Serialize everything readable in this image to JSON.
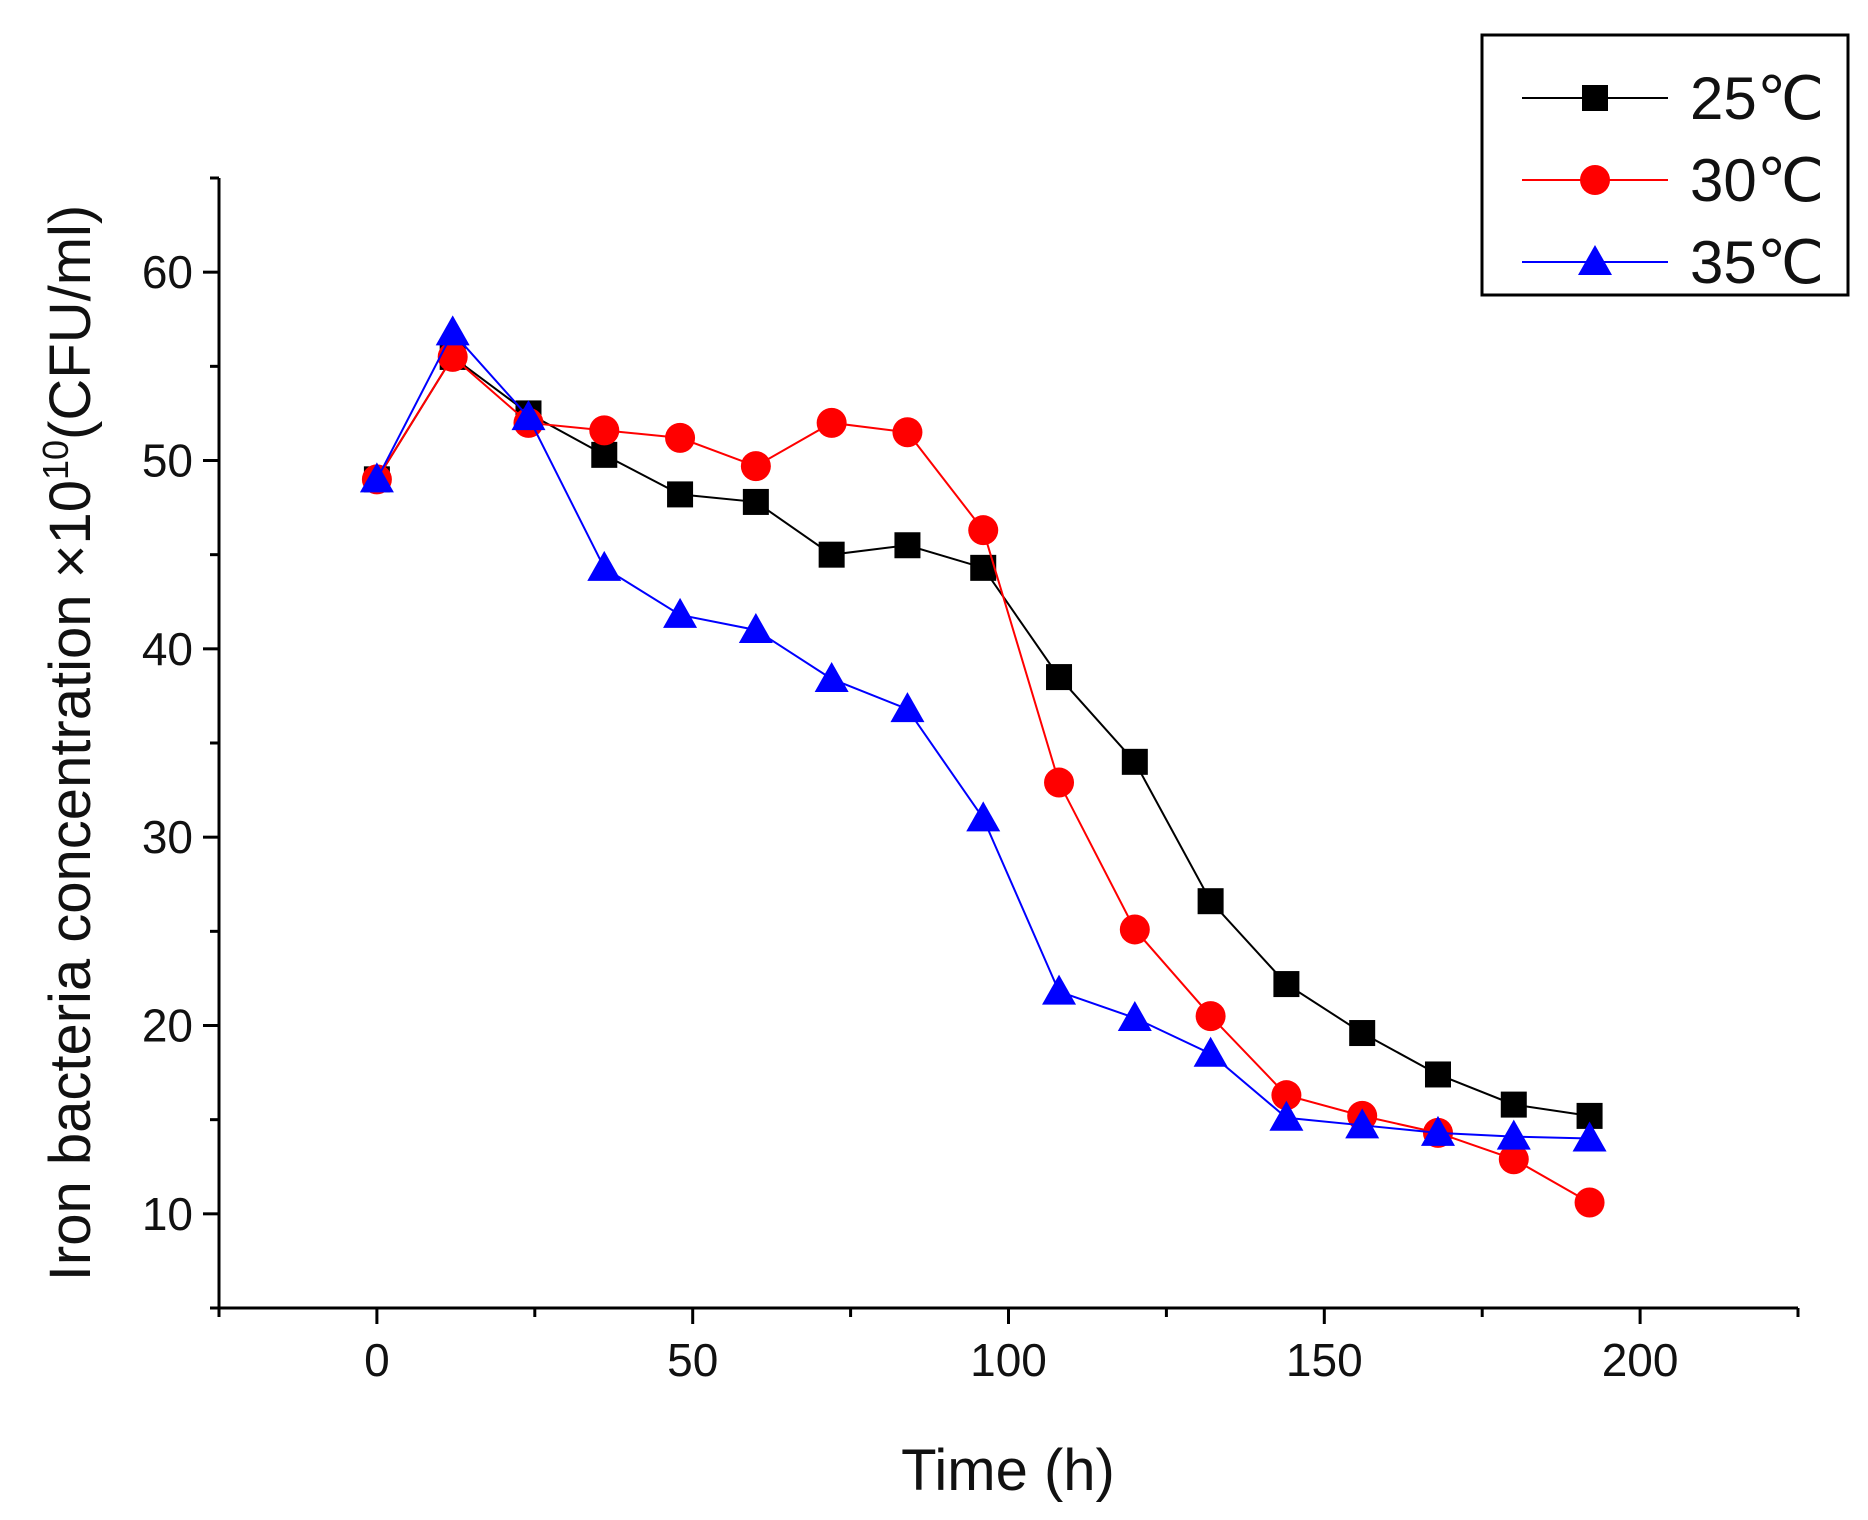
{
  "chart_data": {
    "type": "line",
    "title": "",
    "xlabel": "Time (h)",
    "ylabel_main": "Iron bacteria concentration ×10",
    "ylabel_exp": "10",
    "ylabel_unit": "(CFU/ml)",
    "xlim": [
      -25,
      225
    ],
    "ylim": [
      5,
      65
    ],
    "xticks": [
      0,
      50,
      100,
      150,
      200
    ],
    "yticks": [
      10,
      20,
      30,
      40,
      50,
      60
    ],
    "x": [
      0,
      12,
      24,
      36,
      48,
      60,
      72,
      84,
      96,
      108,
      120,
      132,
      144,
      156,
      168,
      180,
      192
    ],
    "legend_position": "top-right",
    "grid": false,
    "series": [
      {
        "name": "25℃",
        "color": "#000000",
        "marker": "square",
        "values": [
          49.0,
          55.5,
          52.5,
          50.3,
          48.2,
          47.8,
          45.0,
          45.5,
          44.3,
          38.5,
          34.0,
          26.6,
          22.2,
          19.6,
          17.4,
          15.8,
          15.2
        ]
      },
      {
        "name": "30℃",
        "color": "#ff0000",
        "marker": "circle",
        "values": [
          49.0,
          55.5,
          52.0,
          51.6,
          51.2,
          49.7,
          52.0,
          51.5,
          46.3,
          32.9,
          25.1,
          20.5,
          16.3,
          15.2,
          14.3,
          12.9,
          10.6
        ]
      },
      {
        "name": "35℃",
        "color": "#0000ff",
        "marker": "triangle",
        "values": [
          49.0,
          56.8,
          52.3,
          44.3,
          41.8,
          41.0,
          38.4,
          36.8,
          31.0,
          21.8,
          20.4,
          18.5,
          15.1,
          14.7,
          14.3,
          14.1,
          14.0
        ]
      }
    ]
  }
}
